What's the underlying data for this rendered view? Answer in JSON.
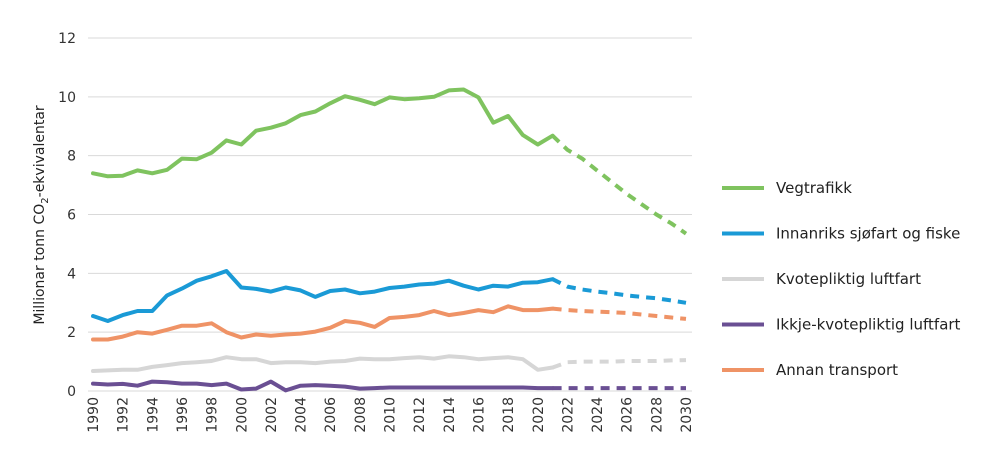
{
  "chart_data": {
    "type": "line",
    "title": "",
    "ylabel": {
      "prefix": "Millionar tonn CO",
      "subscript": "2",
      "suffix": "-ekvivalentar"
    },
    "xlabel": "",
    "ylim": [
      0,
      12
    ],
    "yticks": [
      0,
      2,
      4,
      6,
      8,
      10,
      12
    ],
    "xlim": [
      1990,
      2030
    ],
    "xticks": [
      1990,
      1992,
      1994,
      1996,
      1998,
      2000,
      2002,
      2004,
      2006,
      2008,
      2010,
      2012,
      2014,
      2016,
      2018,
      2020,
      2022,
      2024,
      2026,
      2028,
      2030
    ],
    "grid": true,
    "legend_position": "right",
    "historical_years": [
      1990,
      1991,
      1992,
      1993,
      1994,
      1995,
      1996,
      1997,
      1998,
      1999,
      2000,
      2001,
      2002,
      2003,
      2004,
      2005,
      2006,
      2007,
      2008,
      2009,
      2010,
      2011,
      2012,
      2013,
      2014,
      2015,
      2016,
      2017,
      2018,
      2019,
      2020,
      2021
    ],
    "projection_years": [
      2021,
      2022,
      2023,
      2024,
      2025,
      2026,
      2027,
      2028,
      2029,
      2030
    ],
    "series": [
      {
        "name": "Vegtrafikk",
        "color": "#7fc35f",
        "historical": [
          7.4,
          7.3,
          7.32,
          7.5,
          7.4,
          7.52,
          7.9,
          7.88,
          8.1,
          8.52,
          8.38,
          8.85,
          8.95,
          9.1,
          9.38,
          9.5,
          9.78,
          10.02,
          9.9,
          9.75,
          9.98,
          9.92,
          9.95,
          10.0,
          10.22,
          10.25,
          9.98,
          9.12,
          9.35,
          8.7,
          8.38,
          8.68
        ],
        "projection": [
          8.68,
          8.2,
          7.9,
          7.5,
          7.1,
          6.7,
          6.35,
          6.0,
          5.7,
          5.35
        ]
      },
      {
        "name": "Innanriks sjøfart og fiske",
        "color": "#1a9ad6",
        "historical": [
          2.55,
          2.38,
          2.58,
          2.72,
          2.72,
          3.25,
          3.48,
          3.75,
          3.9,
          4.08,
          3.52,
          3.47,
          3.38,
          3.52,
          3.42,
          3.2,
          3.4,
          3.45,
          3.32,
          3.38,
          3.5,
          3.55,
          3.62,
          3.65,
          3.75,
          3.58,
          3.45,
          3.58,
          3.55,
          3.68,
          3.7,
          3.8
        ],
        "projection": [
          3.8,
          3.55,
          3.45,
          3.38,
          3.32,
          3.25,
          3.2,
          3.15,
          3.08,
          3.0
        ]
      },
      {
        "name": "Kvotepliktig luftfart",
        "color": "#d6d6d6",
        "historical": [
          0.68,
          0.7,
          0.72,
          0.72,
          0.82,
          0.88,
          0.95,
          0.98,
          1.02,
          1.15,
          1.08,
          1.08,
          0.95,
          0.98,
          0.98,
          0.95,
          1.0,
          1.02,
          1.1,
          1.08,
          1.08,
          1.12,
          1.15,
          1.1,
          1.18,
          1.15,
          1.08,
          1.12,
          1.15,
          1.08,
          0.72,
          0.8
        ],
        "projection": [
          0.8,
          0.98,
          1.0,
          1.0,
          1.0,
          1.02,
          1.02,
          1.02,
          1.04,
          1.05
        ]
      },
      {
        "name": "Ikkje-kvotepliktig luftfart",
        "color": "#6a4f93",
        "historical": [
          0.25,
          0.22,
          0.24,
          0.18,
          0.32,
          0.3,
          0.25,
          0.25,
          0.2,
          0.25,
          0.05,
          0.08,
          0.32,
          0.02,
          0.18,
          0.2,
          0.18,
          0.15,
          0.08,
          0.1,
          0.12,
          0.12,
          0.12,
          0.12,
          0.12,
          0.12,
          0.12,
          0.12,
          0.12,
          0.12,
          0.1,
          0.1
        ],
        "projection": [
          0.1,
          0.1,
          0.1,
          0.1,
          0.1,
          0.1,
          0.1,
          0.1,
          0.1,
          0.1
        ]
      },
      {
        "name": "Annan transport",
        "color": "#ef9366",
        "historical": [
          1.75,
          1.75,
          1.85,
          2.0,
          1.95,
          2.08,
          2.22,
          2.22,
          2.3,
          2.0,
          1.82,
          1.92,
          1.88,
          1.92,
          1.95,
          2.02,
          2.15,
          2.38,
          2.32,
          2.18,
          2.48,
          2.52,
          2.58,
          2.72,
          2.58,
          2.65,
          2.75,
          2.68,
          2.88,
          2.75,
          2.75,
          2.8
        ],
        "projection": [
          2.8,
          2.75,
          2.72,
          2.7,
          2.68,
          2.65,
          2.6,
          2.55,
          2.5,
          2.45
        ]
      }
    ]
  }
}
